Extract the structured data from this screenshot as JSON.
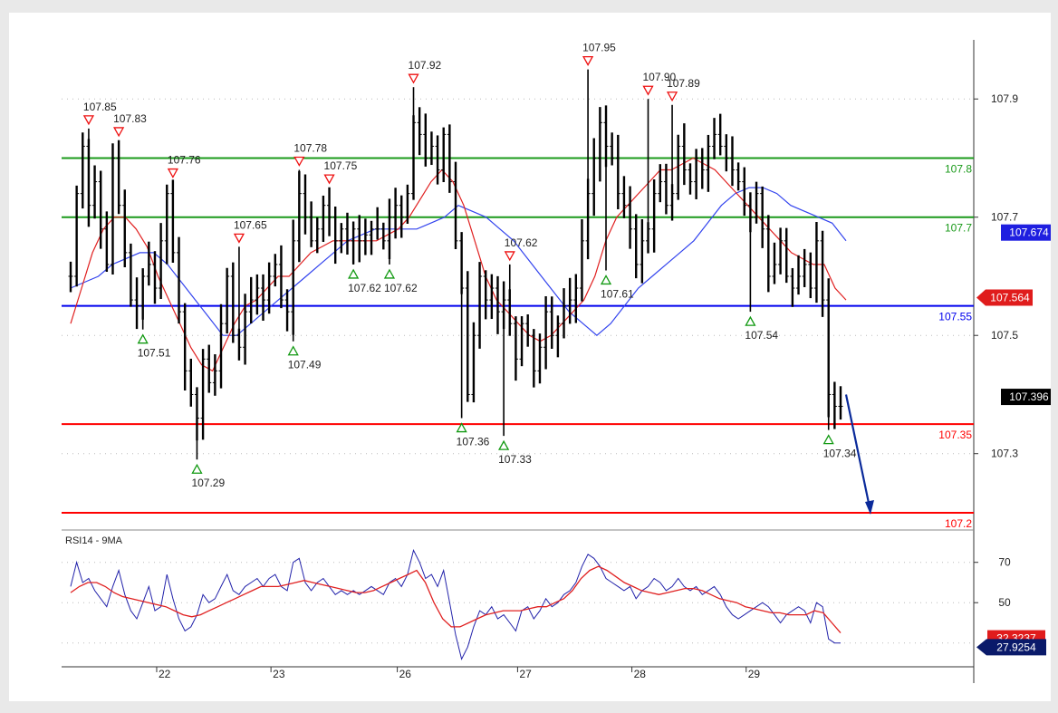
{
  "chart_data": [
    {
      "type": "candlestick",
      "ylim": [
        107.18,
        108.0
      ],
      "y_ticks": [
        "107.9",
        "107.7",
        "107.5",
        "107.3"
      ],
      "x_ticks": [
        "22",
        "23",
        "26",
        "27",
        "28",
        "29"
      ],
      "grid": true,
      "colors": {
        "candle": "#000000",
        "fast_ma": "#e02020",
        "slow_ma": "#3344ee",
        "support": "#ff0000",
        "resistance": "#1a9a1a",
        "pivot": "#0000ee",
        "projection": "#0a2a9a"
      },
      "close": [
        107.6,
        107.74,
        107.82,
        107.72,
        107.76,
        107.68,
        107.62,
        107.8,
        107.72,
        107.64,
        107.56,
        107.55,
        107.6,
        107.62,
        107.58,
        107.66,
        107.74,
        107.64,
        107.54,
        107.44,
        107.4,
        107.36,
        107.46,
        107.42,
        107.44,
        107.52,
        107.6,
        107.5,
        107.48,
        107.54,
        107.56,
        107.58,
        107.56,
        107.6,
        107.62,
        107.56,
        107.54,
        107.66,
        107.74,
        107.7,
        107.66,
        107.68,
        107.72,
        107.7,
        107.66,
        107.68,
        107.66,
        107.68,
        107.66,
        107.67,
        107.68,
        107.68,
        107.66,
        107.7,
        107.72,
        107.7,
        107.74,
        107.86,
        107.84,
        107.8,
        107.82,
        107.78,
        107.84,
        107.76,
        107.66,
        107.58,
        107.4,
        107.5,
        107.6,
        107.56,
        107.58,
        107.54,
        107.56,
        107.52,
        107.46,
        107.52,
        107.5,
        107.44,
        107.48,
        107.54,
        107.5,
        107.52,
        107.55,
        107.56,
        107.58,
        107.66,
        107.74,
        107.8,
        107.86,
        107.82,
        107.8,
        107.74,
        107.72,
        107.68,
        107.62,
        107.66,
        107.68,
        107.74,
        107.76,
        107.72,
        107.74,
        107.82,
        107.78,
        107.76,
        107.8,
        107.78,
        107.82,
        107.84,
        107.82,
        107.8,
        107.78,
        107.76,
        107.72,
        107.7,
        107.74,
        107.68,
        107.6,
        107.62,
        107.66,
        107.6,
        107.58,
        107.6,
        107.62,
        107.58,
        107.66,
        107.56,
        107.4,
        107.38,
        107.38
      ],
      "fast_ma": [
        107.52,
        107.58,
        107.64,
        107.68,
        107.7,
        107.7,
        107.68,
        107.65,
        107.6,
        107.56,
        107.52,
        107.48,
        107.45,
        107.44,
        107.48,
        107.52,
        107.55,
        107.56,
        107.58,
        107.6,
        107.6,
        107.62,
        107.64,
        107.65,
        107.66,
        107.66,
        107.66,
        107.66,
        107.66,
        107.67,
        107.68,
        107.7,
        107.73,
        107.76,
        107.78,
        107.76,
        107.72,
        107.66,
        107.6,
        107.56,
        107.54,
        107.52,
        107.5,
        107.49,
        107.5,
        107.52,
        107.54,
        107.56,
        107.6,
        107.66,
        107.7,
        107.72,
        107.74,
        107.76,
        107.78,
        107.78,
        107.79,
        107.8,
        107.79,
        107.78,
        107.76,
        107.74,
        107.72,
        107.7,
        107.68,
        107.66,
        107.64,
        107.63,
        107.62,
        107.62,
        107.58,
        107.56
      ],
      "slow_ma": [
        107.58,
        107.59,
        107.6,
        107.62,
        107.63,
        107.64,
        107.64,
        107.62,
        107.59,
        107.56,
        107.53,
        107.5,
        107.5,
        107.52,
        107.54,
        107.56,
        107.58,
        107.6,
        107.62,
        107.64,
        107.66,
        107.67,
        107.68,
        107.68,
        107.68,
        107.68,
        107.69,
        107.7,
        107.72,
        107.71,
        107.7,
        107.68,
        107.66,
        107.63,
        107.6,
        107.57,
        107.54,
        107.52,
        107.5,
        107.52,
        107.55,
        107.58,
        107.6,
        107.62,
        107.64,
        107.66,
        107.69,
        107.72,
        107.74,
        107.75,
        107.75,
        107.74,
        107.72,
        107.71,
        107.7,
        107.69,
        107.66
      ],
      "levels": [
        {
          "value": 107.8,
          "label": "107.8",
          "role": "resistance"
        },
        {
          "value": 107.7,
          "label": "107.7",
          "role": "resistance"
        },
        {
          "value": 107.55,
          "label": "107.55",
          "role": "pivot"
        },
        {
          "value": 107.35,
          "label": "107.35",
          "role": "support"
        },
        {
          "value": 107.2,
          "label": "107.2",
          "role": "support"
        }
      ],
      "annotations": [
        {
          "label": "107.85",
          "value": 107.85,
          "bar": 3,
          "kind": "high"
        },
        {
          "label": "107.83",
          "value": 107.83,
          "bar": 8,
          "kind": "high"
        },
        {
          "label": "107.76",
          "value": 107.76,
          "bar": 17,
          "kind": "high"
        },
        {
          "label": "107.65",
          "value": 107.65,
          "bar": 28,
          "kind": "high"
        },
        {
          "label": "107.78",
          "value": 107.78,
          "bar": 38,
          "kind": "high"
        },
        {
          "label": "107.75",
          "value": 107.75,
          "bar": 43,
          "kind": "high"
        },
        {
          "label": "107.92",
          "value": 107.92,
          "bar": 57,
          "kind": "high"
        },
        {
          "label": "107.62",
          "value": 107.62,
          "bar": 73,
          "kind": "high"
        },
        {
          "label": "107.95",
          "value": 107.95,
          "bar": 86,
          "kind": "high"
        },
        {
          "label": "107.90",
          "value": 107.9,
          "bar": 96,
          "kind": "high"
        },
        {
          "label": "107.89",
          "value": 107.89,
          "bar": 100,
          "kind": "high"
        },
        {
          "label": "107.51",
          "value": 107.51,
          "bar": 12,
          "kind": "low"
        },
        {
          "label": "107.29",
          "value": 107.29,
          "bar": 21,
          "kind": "low"
        },
        {
          "label": "107.49",
          "value": 107.49,
          "bar": 37,
          "kind": "low"
        },
        {
          "label": "107.62",
          "value": 107.62,
          "bar": 47,
          "kind": "low"
        },
        {
          "label": "107.62",
          "value": 107.62,
          "bar": 53,
          "kind": "low"
        },
        {
          "label": "107.36",
          "value": 107.36,
          "bar": 65,
          "kind": "low"
        },
        {
          "label": "107.33",
          "value": 107.33,
          "bar": 72,
          "kind": "low"
        },
        {
          "label": "107.61",
          "value": 107.61,
          "bar": 89,
          "kind": "low"
        },
        {
          "label": "107.54",
          "value": 107.54,
          "bar": 113,
          "kind": "low"
        },
        {
          "label": "107.34",
          "value": 107.34,
          "bar": 126,
          "kind": "low"
        }
      ],
      "price_badges": [
        {
          "label": "107.674",
          "value": 107.674,
          "color": "#1f1fe0"
        },
        {
          "label": "107.564",
          "value": 107.564,
          "color": "#e01c1c"
        },
        {
          "label": "107.396",
          "value": 107.396,
          "color": "#000000"
        }
      ],
      "projection": {
        "from": 107.4,
        "to": 107.2
      }
    },
    {
      "type": "line",
      "title": "RSI14 - 9MA",
      "ylim": [
        20,
        82
      ],
      "y_ticks": [
        "70",
        "50"
      ],
      "grid": true,
      "series": [
        {
          "color": "#2222aa",
          "values": [
            58,
            70,
            60,
            62,
            56,
            52,
            48,
            58,
            66,
            54,
            46,
            42,
            50,
            58,
            46,
            48,
            64,
            52,
            42,
            36,
            38,
            44,
            54,
            50,
            52,
            58,
            64,
            56,
            54,
            58,
            60,
            62,
            58,
            62,
            64,
            58,
            56,
            70,
            72,
            60,
            56,
            60,
            62,
            58,
            54,
            56,
            54,
            56,
            54,
            56,
            58,
            56,
            54,
            60,
            62,
            58,
            64,
            76,
            70,
            62,
            64,
            58,
            66,
            50,
            34,
            22,
            28,
            38,
            46,
            44,
            48,
            42,
            44,
            40,
            36,
            46,
            48,
            42,
            46,
            52,
            48,
            50,
            54,
            56,
            60,
            68,
            74,
            72,
            68,
            62,
            60,
            58,
            56,
            58,
            52,
            56,
            58,
            62,
            60,
            56,
            58,
            62,
            58,
            56,
            58,
            54,
            56,
            58,
            54,
            48,
            44,
            42,
            44,
            46,
            48,
            50,
            48,
            44,
            40,
            44,
            46,
            48,
            46,
            40,
            50,
            48,
            32,
            30,
            30
          ]
        },
        {
          "color": "#e02020",
          "values": [
            55,
            58,
            60,
            60,
            58,
            55,
            53,
            52,
            51,
            50,
            49,
            48,
            46,
            44,
            43,
            44,
            46,
            48,
            50,
            52,
            54,
            56,
            58,
            58,
            58,
            59,
            60,
            61,
            60,
            59,
            58,
            57,
            56,
            55,
            55,
            56,
            58,
            60,
            62,
            64,
            66,
            60,
            50,
            42,
            38,
            38,
            40,
            42,
            44,
            45,
            46,
            46,
            46,
            47,
            48,
            48,
            50,
            52,
            56,
            62,
            66,
            68,
            66,
            63,
            60,
            58,
            56,
            55,
            54,
            55,
            56,
            57,
            57,
            56,
            54,
            52,
            51,
            50,
            48,
            47,
            46,
            45,
            45,
            44,
            44,
            44,
            46,
            45,
            40,
            35
          ]
        }
      ],
      "value_badges": [
        {
          "label": "32.3237",
          "value": 32.3237,
          "color": "#e01c1c"
        },
        {
          "label": "27.9254",
          "value": 27.9254,
          "color": "#0a1a6a"
        }
      ]
    }
  ]
}
